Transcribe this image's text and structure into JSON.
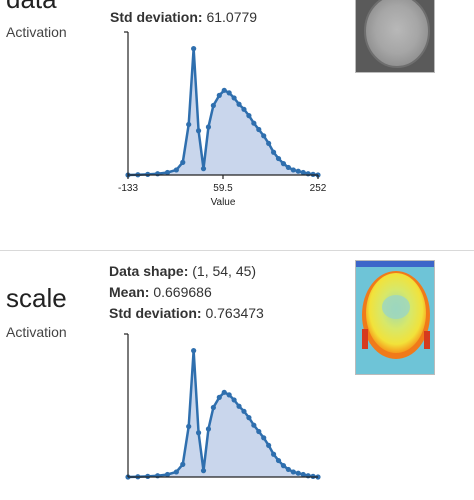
{
  "sections": [
    {
      "title": "data",
      "subtitle": "Activation",
      "stats": [
        {
          "label": "Std deviation:",
          "value": "61.0779"
        }
      ],
      "thumbnail": "grayscale-brain-slice",
      "chart_data": {
        "type": "area",
        "x": [
          -133,
          -113,
          -93,
          -73,
          -53,
          -35,
          -22,
          -10,
          0,
          10,
          20,
          30,
          40,
          52,
          62,
          72,
          82,
          92,
          102,
          112,
          122,
          132,
          142,
          152,
          162,
          172,
          182,
          192,
          202,
          212,
          222,
          232,
          242,
          252
        ],
        "y": [
          0,
          0.2,
          0.5,
          1,
          2,
          4,
          10,
          40,
          100,
          35,
          5,
          38,
          55,
          63,
          67,
          65,
          61,
          56,
          52,
          47,
          41,
          36,
          31,
          25,
          18,
          13,
          9,
          6,
          4,
          3,
          2,
          1,
          0.5,
          0
        ],
        "xticks": [
          "-133",
          "59.5",
          "252"
        ],
        "xlim": [
          -133,
          252
        ],
        "ylim": [
          0,
          110
        ],
        "xlabel": "Value",
        "ylabel": ""
      }
    },
    {
      "title": "scale",
      "subtitle": "Activation",
      "stats": [
        {
          "label": "Data shape:",
          "value": "(1, 54, 45)"
        },
        {
          "label": "Mean:",
          "value": "0.669686"
        },
        {
          "label": "Std deviation:",
          "value": "0.763473"
        }
      ],
      "thumbnail": "heatmap-brain-slice",
      "chart_data": {
        "type": "area",
        "x": [
          -133,
          -113,
          -93,
          -73,
          -53,
          -35,
          -22,
          -10,
          0,
          10,
          20,
          30,
          40,
          52,
          62,
          72,
          82,
          92,
          102,
          112,
          122,
          132,
          142,
          152,
          162,
          172,
          182,
          192,
          202,
          212,
          222,
          232,
          242,
          252
        ],
        "y": [
          0,
          0.2,
          0.5,
          1,
          2,
          4,
          10,
          40,
          100,
          35,
          5,
          38,
          55,
          63,
          67,
          65,
          61,
          56,
          52,
          47,
          41,
          36,
          31,
          25,
          18,
          13,
          9,
          6,
          4,
          3,
          2,
          1,
          0.5,
          0
        ],
        "xticks": [],
        "xlim": [
          -133,
          252
        ],
        "ylim": [
          0,
          110
        ],
        "xlabel": "",
        "ylabel": ""
      }
    }
  ],
  "colors": {
    "line": "#2f6fae",
    "fill": "#c9d6ec",
    "axis": "#222222"
  }
}
